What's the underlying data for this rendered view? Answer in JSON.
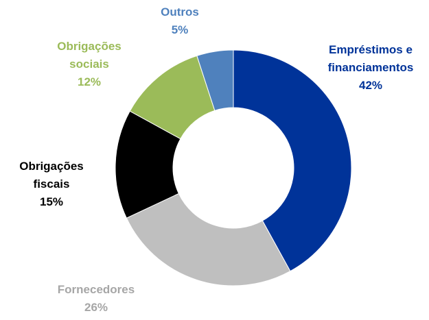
{
  "chart_data": {
    "type": "donut",
    "categories": [
      "Empréstimos e financiamentos",
      "Fornecedores",
      "Obrigações fiscais",
      "Obrigações sociais",
      "Outros"
    ],
    "values": [
      42,
      26,
      15,
      12,
      5
    ],
    "value_labels": [
      "42%",
      "26%",
      "15%",
      "12%",
      "5%"
    ],
    "colors": [
      "#003399",
      "#bfbfbf",
      "#000000",
      "#9bbb59",
      "#4f81bd"
    ]
  }
}
